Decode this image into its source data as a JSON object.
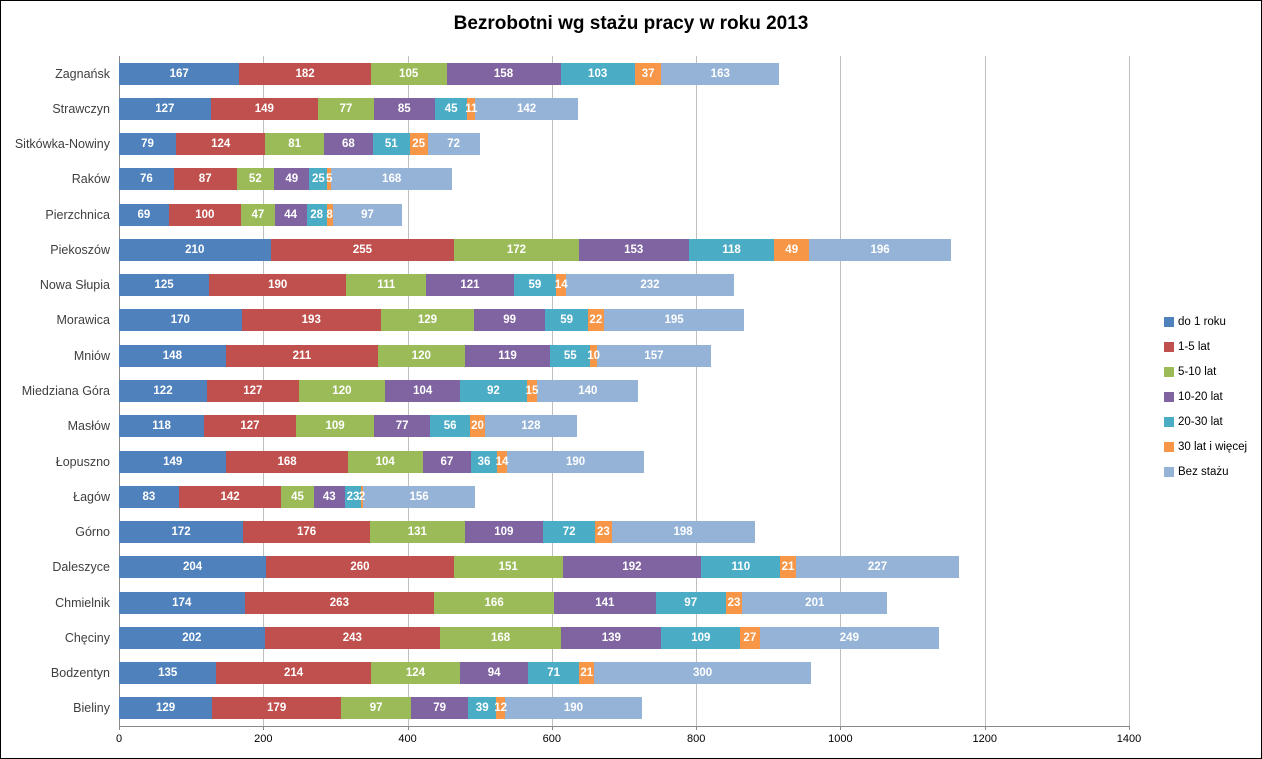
{
  "title": "Bezrobotni wg stażu pracy w roku 2013",
  "chart_data": {
    "type": "bar",
    "orientation": "horizontal-stacked",
    "title": "Bezrobotni wg stażu pracy w roku 2013",
    "xlabel": "",
    "ylabel": "",
    "xlim": [
      0,
      1400
    ],
    "x_ticks": [
      0,
      200,
      400,
      600,
      800,
      1000,
      1200,
      1400
    ],
    "grid": "vertical",
    "legend_position": "right",
    "value_labels": "inside-white-bold",
    "categories": [
      "Zagnańsk",
      "Strawczyn",
      "Sitkówka-Nowiny",
      "Raków",
      "Pierzchnica",
      "Piekoszów",
      "Nowa Słupia",
      "Morawica",
      "Mniów",
      "Miedziana Góra",
      "Masłów",
      "Łopuszno",
      "Łagów",
      "Górno",
      "Daleszyce",
      "Chmielnik",
      "Chęciny",
      "Bodzentyn",
      "Bieliny"
    ],
    "series": [
      {
        "name": "do 1 roku",
        "color": "#4F81BD",
        "values": [
          167,
          127,
          79,
          76,
          69,
          210,
          125,
          170,
          148,
          122,
          118,
          149,
          83,
          172,
          204,
          174,
          202,
          135,
          129
        ]
      },
      {
        "name": "1-5 lat",
        "color": "#C0504D",
        "values": [
          182,
          149,
          124,
          87,
          100,
          255,
          190,
          193,
          211,
          127,
          127,
          168,
          142,
          176,
          260,
          263,
          243,
          214,
          179
        ]
      },
      {
        "name": "5-10 lat",
        "color": "#9BBB59",
        "values": [
          105,
          77,
          81,
          52,
          47,
          172,
          111,
          129,
          120,
          120,
          109,
          104,
          45,
          131,
          151,
          166,
          168,
          124,
          97
        ]
      },
      {
        "name": "10-20 lat",
        "color": "#8064A2",
        "values": [
          158,
          85,
          68,
          49,
          44,
          153,
          121,
          99,
          119,
          104,
          77,
          67,
          43,
          109,
          192,
          141,
          139,
          94,
          79
        ]
      },
      {
        "name": "20-30 lat",
        "color": "#4BACC6",
        "values": [
          103,
          45,
          51,
          25,
          28,
          118,
          59,
          59,
          55,
          92,
          56,
          36,
          23,
          72,
          110,
          97,
          109,
          71,
          39
        ]
      },
      {
        "name": "30 lat i więcej",
        "color": "#F79646",
        "values": [
          37,
          11,
          25,
          5,
          8,
          49,
          14,
          22,
          10,
          15,
          20,
          14,
          2,
          23,
          21,
          23,
          27,
          21,
          12
        ]
      },
      {
        "name": "Bez stażu",
        "color": "#95B3D7",
        "values": [
          163,
          142,
          72,
          168,
          97,
          196,
          232,
          195,
          157,
          140,
          128,
          190,
          156,
          198,
          227,
          201,
          249,
          300,
          190
        ]
      }
    ]
  }
}
